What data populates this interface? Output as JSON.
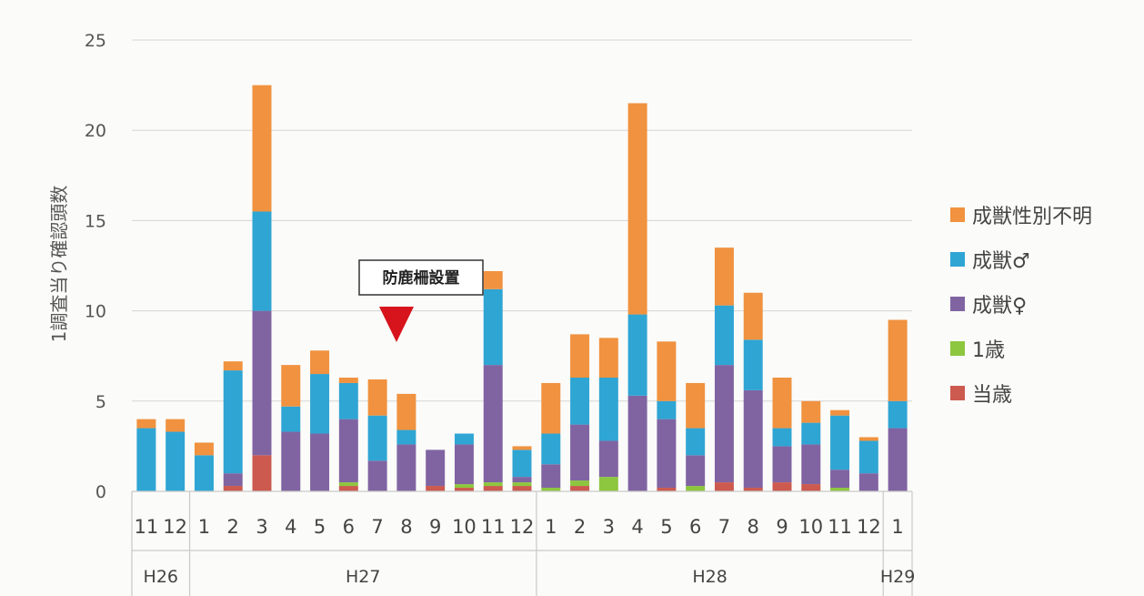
{
  "chart_data": {
    "type": "bar",
    "stacked": true,
    "ylabel": "1調査当り確認頭数",
    "ylim": [
      0,
      25
    ],
    "yticks": [
      "0",
      "5",
      "10",
      "15",
      "20",
      "25"
    ],
    "grid": true,
    "legend_position": "right",
    "categories": [
      "11",
      "12",
      "1",
      "2",
      "3",
      "4",
      "5",
      "6",
      "7",
      "8",
      "9",
      "10",
      "11",
      "12",
      "1",
      "2",
      "3",
      "4",
      "5",
      "6",
      "7",
      "8",
      "9",
      "10",
      "11",
      "12",
      "1"
    ],
    "years": [
      {
        "label": "H26",
        "start": 0,
        "count": 2
      },
      {
        "label": "H27",
        "start": 2,
        "count": 12
      },
      {
        "label": "H28",
        "start": 14,
        "count": 12
      },
      {
        "label": "H29",
        "start": 26,
        "count": 1
      }
    ],
    "series": [
      {
        "name": "当歳",
        "color": "#cc5a4e",
        "values": [
          0,
          0,
          0,
          0.3,
          2,
          0,
          0,
          0.3,
          0,
          0,
          0.3,
          0.2,
          0.3,
          0.3,
          0,
          0.3,
          0,
          0,
          0.2,
          0,
          0.5,
          0.2,
          0.5,
          0.4,
          0,
          0,
          0
        ]
      },
      {
        "name": "1歳",
        "color": "#8dc63f",
        "values": [
          0,
          0,
          0,
          0,
          0,
          0,
          0,
          0.2,
          0,
          0,
          0,
          0.2,
          0.2,
          0.2,
          0.2,
          0.3,
          0.8,
          0,
          0,
          0.3,
          0,
          0,
          0,
          0,
          0.2,
          0,
          0
        ]
      },
      {
        "name": "成獣♀",
        "color": "#8064a2",
        "values": [
          0,
          0,
          0,
          0.7,
          8,
          3.3,
          3.2,
          3.5,
          1.7,
          2.6,
          2,
          2.2,
          6.5,
          0.3,
          1.3,
          3.1,
          2,
          5.3,
          3.8,
          1.7,
          6.5,
          5.4,
          2,
          2.2,
          1,
          1,
          3.5
        ]
      },
      {
        "name": "成獣♂",
        "color": "#2fa5d4",
        "values": [
          3.5,
          3.3,
          2,
          5.7,
          5.5,
          1.4,
          3.3,
          2,
          2.5,
          0.8,
          0,
          0.6,
          4.2,
          1.5,
          1.7,
          2.6,
          3.5,
          4.5,
          1,
          1.5,
          3.3,
          2.8,
          1,
          1.2,
          3,
          1.8,
          1.5
        ]
      },
      {
        "name": "成獣性別不明",
        "color": "#f0923f",
        "values": [
          0.5,
          0.7,
          0.7,
          0.5,
          7,
          2.3,
          1.3,
          0.3,
          2,
          2,
          0,
          0,
          1,
          0.2,
          2.8,
          2.4,
          2.2,
          11.7,
          3.3,
          2.5,
          3.2,
          2.6,
          2.8,
          1.2,
          0.3,
          0.2,
          4.5
        ]
      }
    ],
    "annotation": {
      "text": "防鹿柵設置",
      "marker_color": "#d7141c"
    }
  }
}
